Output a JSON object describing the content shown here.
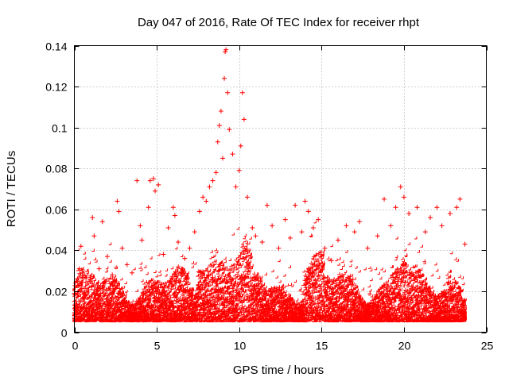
{
  "chart_data": {
    "type": "scatter",
    "title": "Day 047 of 2016, Rate Of TEC Index for receiver rhpt",
    "xlabel": "GPS time / hours",
    "ylabel": "ROTI / TECUs",
    "xlim": [
      0,
      25
    ],
    "ylim": [
      0,
      0.14
    ],
    "xticks": [
      0,
      5,
      10,
      15,
      20,
      25
    ],
    "xtick_labels": [
      "0",
      "5",
      "10",
      "15",
      "20",
      "25"
    ],
    "yticks": [
      0,
      0.02,
      0.04,
      0.06,
      0.08,
      0.1,
      0.12,
      0.14
    ],
    "ytick_labels": [
      "0",
      "0.02",
      "0.04",
      "0.06",
      "0.08",
      "0.1",
      "0.12",
      "0.14"
    ],
    "grid": true,
    "marker": "plus",
    "color": "#ff0000",
    "series": [
      {
        "name": "ROTI",
        "points": [
          [
            0.1,
            0.012
          ],
          [
            0.3,
            0.031
          ],
          [
            0.4,
            0.042
          ],
          [
            0.5,
            0.029
          ],
          [
            0.7,
            0.018
          ],
          [
            1.0,
            0.025
          ],
          [
            1.1,
            0.056
          ],
          [
            1.2,
            0.047
          ],
          [
            1.5,
            0.031
          ],
          [
            1.7,
            0.054
          ],
          [
            2.0,
            0.037
          ],
          [
            2.3,
            0.028
          ],
          [
            2.6,
            0.064
          ],
          [
            2.7,
            0.059
          ],
          [
            2.9,
            0.041
          ],
          [
            3.2,
            0.033
          ],
          [
            3.5,
            0.029
          ],
          [
            3.8,
            0.074
          ],
          [
            4.0,
            0.052
          ],
          [
            4.1,
            0.045
          ],
          [
            4.5,
            0.061
          ],
          [
            4.6,
            0.074
          ],
          [
            4.8,
            0.075
          ],
          [
            4.9,
            0.069
          ],
          [
            5.1,
            0.072
          ],
          [
            5.4,
            0.038
          ],
          [
            5.7,
            0.051
          ],
          [
            6.0,
            0.061
          ],
          [
            6.1,
            0.057
          ],
          [
            6.3,
            0.044
          ],
          [
            6.7,
            0.036
          ],
          [
            7.0,
            0.041
          ],
          [
            7.3,
            0.049
          ],
          [
            7.6,
            0.059
          ],
          [
            7.8,
            0.066
          ],
          [
            8.0,
            0.064
          ],
          [
            8.2,
            0.071
          ],
          [
            8.4,
            0.074
          ],
          [
            8.6,
            0.078
          ],
          [
            8.7,
            0.093
          ],
          [
            8.8,
            0.101
          ],
          [
            8.9,
            0.108
          ],
          [
            9.0,
            0.085
          ],
          [
            9.1,
            0.124
          ],
          [
            9.15,
            0.137
          ],
          [
            9.2,
            0.138
          ],
          [
            9.3,
            0.117
          ],
          [
            9.4,
            0.099
          ],
          [
            9.6,
            0.087
          ],
          [
            9.8,
            0.071
          ],
          [
            10.0,
            0.079
          ],
          [
            10.1,
            0.091
          ],
          [
            10.2,
            0.117
          ],
          [
            10.3,
            0.104
          ],
          [
            10.5,
            0.066
          ],
          [
            10.8,
            0.051
          ],
          [
            11.0,
            0.047
          ],
          [
            11.4,
            0.044
          ],
          [
            11.7,
            0.062
          ],
          [
            12.0,
            0.052
          ],
          [
            12.4,
            0.041
          ],
          [
            12.8,
            0.055
          ],
          [
            13.1,
            0.046
          ],
          [
            13.4,
            0.062
          ],
          [
            13.8,
            0.049
          ],
          [
            14.0,
            0.064
          ],
          [
            14.2,
            0.059
          ],
          [
            14.5,
            0.051
          ],
          [
            14.8,
            0.055
          ],
          [
            15.2,
            0.041
          ],
          [
            15.6,
            0.035
          ],
          [
            16.0,
            0.045
          ],
          [
            16.5,
            0.052
          ],
          [
            17.0,
            0.049
          ],
          [
            17.3,
            0.054
          ],
          [
            17.8,
            0.041
          ],
          [
            18.4,
            0.047
          ],
          [
            18.8,
            0.065
          ],
          [
            19.2,
            0.052
          ],
          [
            19.5,
            0.061
          ],
          [
            19.8,
            0.071
          ],
          [
            20.0,
            0.066
          ],
          [
            20.3,
            0.058
          ],
          [
            20.8,
            0.061
          ],
          [
            21.3,
            0.049
          ],
          [
            21.6,
            0.056
          ],
          [
            22.0,
            0.061
          ],
          [
            22.3,
            0.052
          ],
          [
            22.8,
            0.058
          ],
          [
            23.2,
            0.061
          ],
          [
            23.4,
            0.065
          ],
          [
            23.7,
            0.043
          ]
        ]
      }
    ]
  }
}
